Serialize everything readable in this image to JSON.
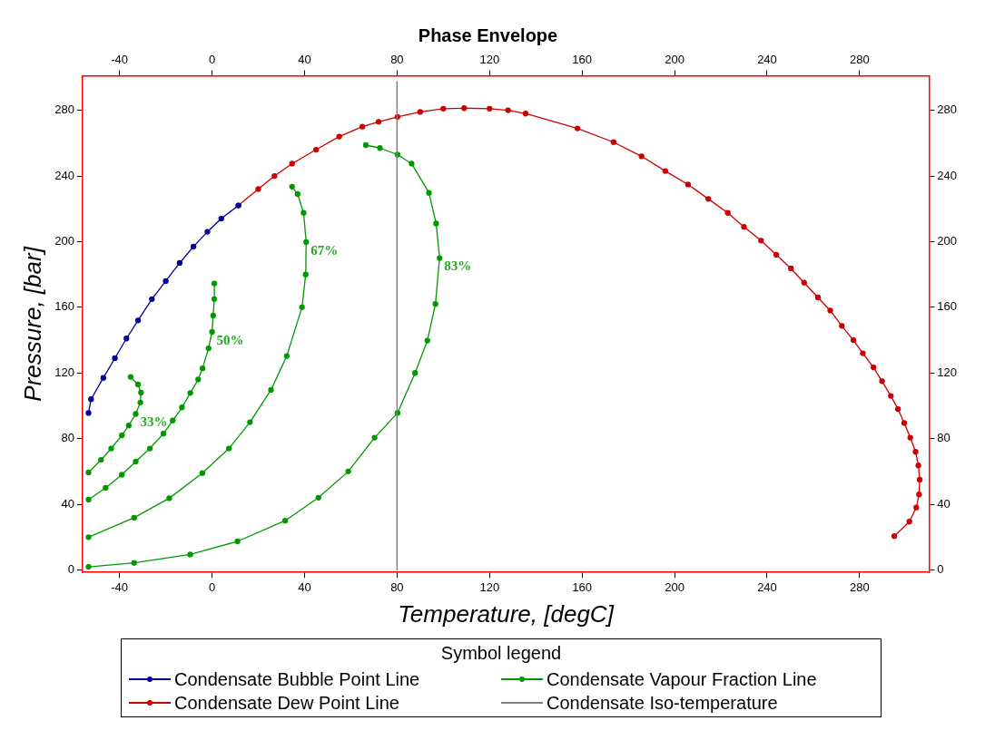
{
  "chart_data": {
    "type": "line",
    "title": "Phase Envelope",
    "xlabel": "Temperature, [degC]",
    "ylabel": "Pressure, [bar]",
    "legend_title": "Symbol legend",
    "legend": "bottom",
    "grid": false,
    "marker": "circle",
    "line_style": "solid",
    "xlim": [
      -56,
      310
    ],
    "xticks": [
      -40,
      0,
      40,
      80,
      120,
      160,
      200,
      240,
      280
    ],
    "ylim": [
      -1.5,
      301
    ],
    "yticks": [
      0,
      40,
      80,
      120,
      160,
      200,
      240,
      280
    ],
    "x2lim": [
      -56,
      310
    ],
    "x2ticks": [
      -40,
      0,
      40,
      80,
      120,
      160,
      200,
      240,
      280
    ],
    "y2lim": [
      -1.5,
      301
    ],
    "y2ticks": [
      0,
      40,
      80,
      120,
      160,
      200,
      240,
      280
    ],
    "series": [
      {
        "name": "Condensate Bubble Point Line",
        "color": "#000099",
        "x": [
          -53.4,
          -52.3,
          -47,
          -42,
          -37,
          -32,
          -26,
          -20,
          -14,
          -8,
          -2,
          4,
          11.4
        ],
        "values": [
          95.6,
          104,
          117,
          129,
          141,
          152,
          165,
          176,
          187,
          197,
          206,
          214,
          222
        ]
      },
      {
        "name": "Condensate Dew Point Line",
        "color": "#cc0000",
        "x": [
          11.4,
          20,
          27,
          34.6,
          45,
          55,
          65,
          72,
          80.2,
          90,
          100,
          109,
          120,
          128,
          135.6,
          158,
          173.6,
          185.7,
          196,
          205.8,
          214.6,
          223,
          230,
          237.4,
          244,
          250.3,
          256,
          262,
          267.3,
          272.3,
          277.3,
          281.4,
          286,
          289.7,
          293.5,
          296.6,
          299.3,
          301.9,
          304.2,
          305.4,
          306,
          305.7,
          304.5,
          301.5,
          295
        ],
        "values": [
          222,
          232,
          240,
          247.5,
          256,
          264,
          270,
          273,
          276,
          279,
          281,
          281.3,
          281,
          280,
          278,
          269,
          260.6,
          252,
          243,
          234.8,
          226,
          217.5,
          209,
          200.6,
          192,
          183.7,
          175,
          166,
          158,
          148.7,
          140,
          132,
          123.4,
          115,
          106,
          98,
          89.5,
          80.6,
          72,
          63.7,
          55,
          46,
          38,
          29.4,
          20.6
        ]
      },
      {
        "name": "Condensate Vapour Fraction Line",
        "color": "#009900",
        "x": [
          -53.4,
          -48,
          -43.6,
          -39,
          -36,
          -33,
          -31,
          -30.7,
          -32,
          -35.2
        ],
        "values": [
          59.4,
          67,
          74,
          82,
          88,
          95,
          102,
          108,
          113,
          117.6
        ]
      },
      {
        "color": "#009900",
        "x": [
          -53.4,
          -46,
          -39,
          -33,
          -26.9,
          -21,
          -17,
          -13,
          -9.4,
          -6,
          -4.1,
          -1.5,
          0,
          0.5,
          1,
          1
        ],
        "values": [
          42.8,
          50,
          58,
          66,
          74,
          83,
          91,
          99,
          107.8,
          116,
          122.8,
          135,
          145,
          155,
          165,
          174.5
        ]
      },
      {
        "color": "#009900",
        "x": [
          -53.4,
          -33.7,
          -18.5,
          -4.2,
          7.3,
          16.4,
          25.5,
          32.3,
          38.9,
          40.5,
          40.7,
          39.6,
          37,
          34.6
        ],
        "values": [
          20,
          31.8,
          43.7,
          59,
          74,
          90,
          109.7,
          130.3,
          160,
          180,
          199.7,
          217.5,
          229,
          233.5
        ]
      },
      {
        "color": "#009900",
        "x": [
          -53.4,
          -33.7,
          -9.4,
          11,
          31.6,
          46,
          58.9,
          70.3,
          80.2,
          87.8,
          93.1,
          96.6,
          98.4,
          96.9,
          93.8,
          86.3,
          80.2,
          72.6,
          66.5
        ],
        "values": [
          1.9,
          4.3,
          9.4,
          17.4,
          30,
          44,
          60,
          80.6,
          95.6,
          120,
          139.7,
          162,
          190,
          211,
          229.7,
          247.5,
          253,
          257,
          258.8
        ]
      }
    ],
    "ref_lines": [
      {
        "axis": "x",
        "value": 80,
        "label": "Condensate Iso-temperature",
        "color": "#808080"
      }
    ],
    "annotations": [
      {
        "text": "33%",
        "x": -33,
        "y": 95
      },
      {
        "text": "50%",
        "x": 0,
        "y": 145
      },
      {
        "text": "67%",
        "x": 40.7,
        "y": 199.7
      },
      {
        "text": "83%",
        "x": 98.4,
        "y": 190
      }
    ]
  }
}
